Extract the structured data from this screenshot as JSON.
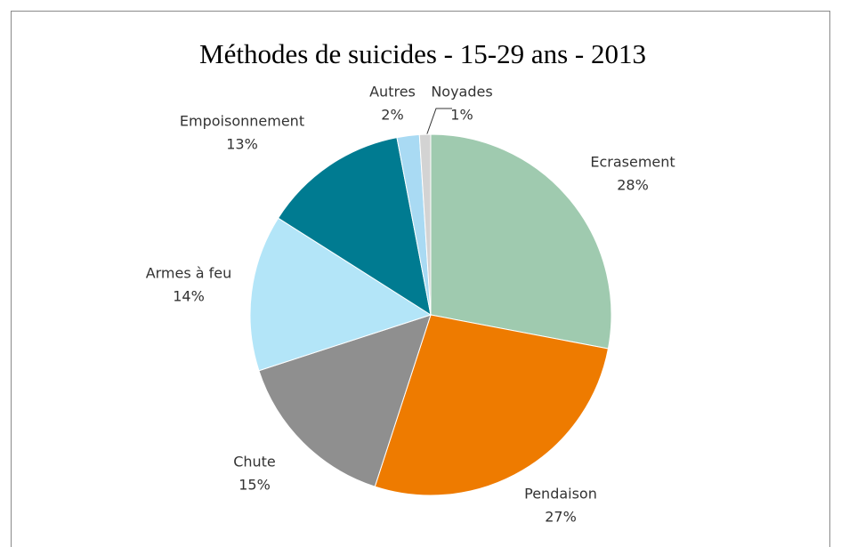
{
  "chart_data": {
    "type": "pie",
    "title": "Méthodes de suicides - 15-29 ans -  2013",
    "categories": [
      "Ecrasement",
      "Pendaison",
      "Chute",
      "Armes à feu",
      "Empoisonnement",
      "Autres",
      "Noyades"
    ],
    "values": [
      28,
      27,
      15,
      14,
      13,
      2,
      1
    ],
    "value_labels": [
      "28%",
      "27%",
      "15%",
      "14%",
      "13%",
      "2%",
      "1%"
    ],
    "colors": [
      "#9fcaaf",
      "#ee7b00",
      "#8f8f8f",
      "#b3e5f8",
      "#007b91",
      "#a9daf3",
      "#d3d3d3"
    ]
  }
}
